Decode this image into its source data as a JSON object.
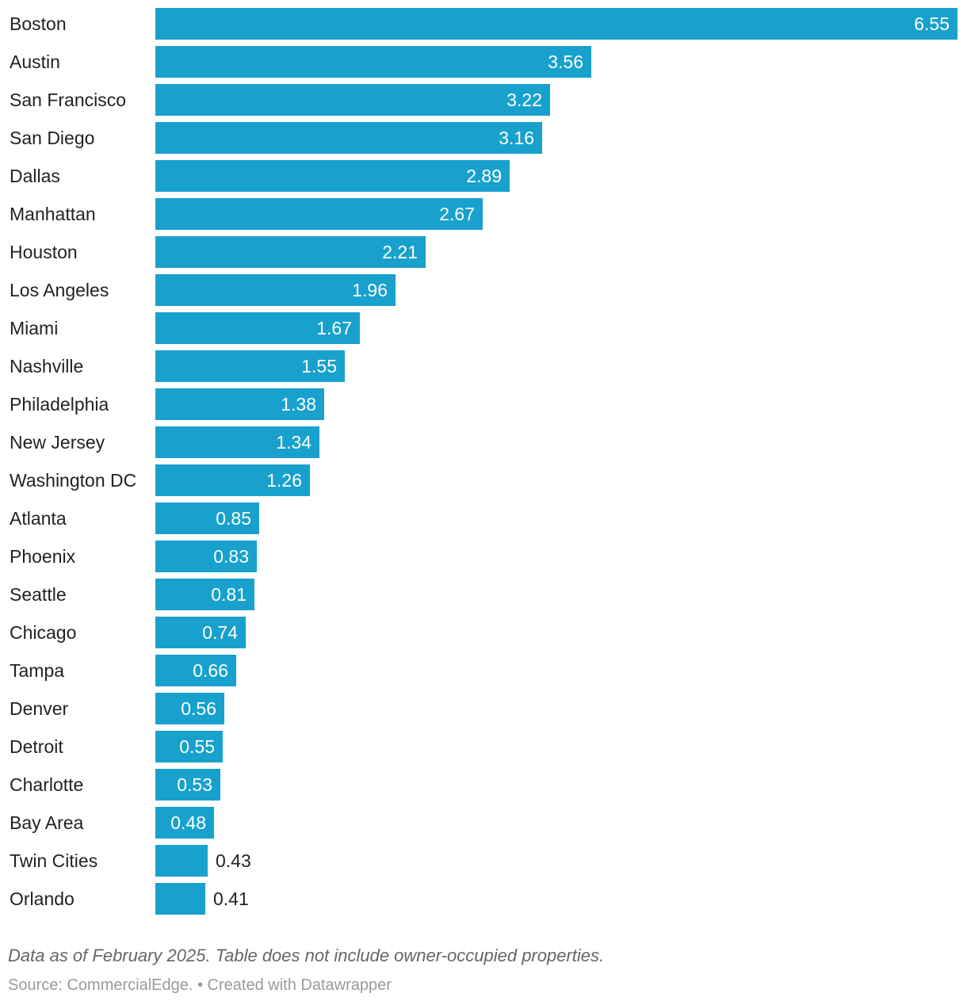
{
  "chart_data": {
    "type": "bar",
    "orientation": "horizontal",
    "categories": [
      "Boston",
      "Austin",
      "San Francisco",
      "San Diego",
      "Dallas",
      "Manhattan",
      "Houston",
      "Los Angeles",
      "Miami",
      "Nashville",
      "Philadelphia",
      "New Jersey",
      "Washington DC",
      "Atlanta",
      "Phoenix",
      "Seattle",
      "Chicago",
      "Tampa",
      "Denver",
      "Detroit",
      "Charlotte",
      "Bay Area",
      "Twin Cities",
      "Orlando"
    ],
    "values": [
      6.55,
      3.56,
      3.22,
      3.16,
      2.89,
      2.67,
      2.21,
      1.96,
      1.67,
      1.55,
      1.38,
      1.34,
      1.26,
      0.85,
      0.83,
      0.81,
      0.74,
      0.66,
      0.56,
      0.55,
      0.53,
      0.48,
      0.43,
      0.41
    ],
    "xlim": [
      0,
      6.55
    ],
    "bar_color": "#18a1cd",
    "grid": false
  },
  "footer": {
    "notes": "Data as of February 2025. Table does not include owner-occupied properties.",
    "source": "Source: CommercialEdge. • Created with Datawrapper"
  }
}
